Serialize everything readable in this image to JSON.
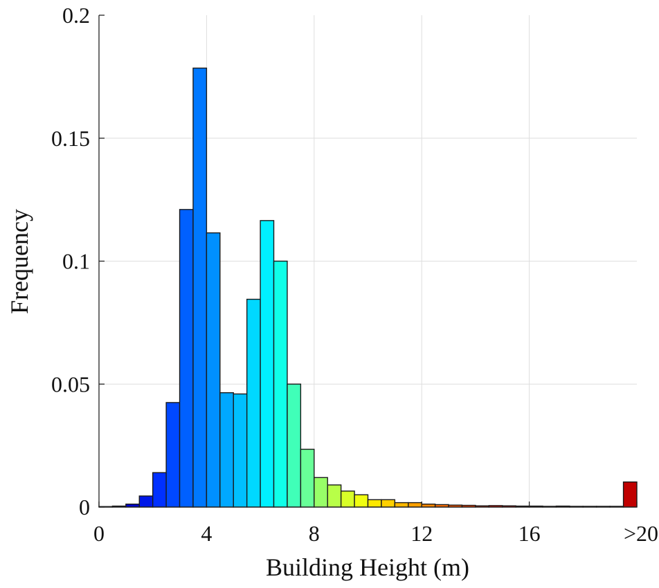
{
  "chart_data": {
    "type": "bar",
    "title": "",
    "xlabel": "Building Height (m)",
    "ylabel": "Frequency",
    "xlim": [
      0,
      20
    ],
    "ylim": [
      0,
      0.2
    ],
    "bin_width": 0.5,
    "grid": true,
    "x_tick_values": [
      0,
      4,
      8,
      12,
      16,
      20
    ],
    "x_tick_labels": [
      "0",
      "4",
      "8",
      "12",
      "16",
      ">20"
    ],
    "y_tick_values": [
      0,
      0.05,
      0.1,
      0.15,
      0.2
    ],
    "y_tick_labels": [
      "0",
      "0.05",
      "0.1",
      "0.15",
      "0.2"
    ],
    "bin_starts": [
      0,
      0.5,
      1,
      1.5,
      2,
      2.5,
      3,
      3.5,
      4,
      4.5,
      5,
      5.5,
      6,
      6.5,
      7,
      7.5,
      8,
      8.5,
      9,
      9.5,
      10,
      10.5,
      11,
      11.5,
      12,
      12.5,
      13,
      13.5,
      14,
      14.5,
      15,
      15.5,
      16,
      16.5,
      17,
      17.5,
      18,
      18.5,
      19,
      19.5
    ],
    "values": [
      0.0002,
      0.0004,
      0.0012,
      0.0045,
      0.014,
      0.0425,
      0.121,
      0.1785,
      0.1115,
      0.0465,
      0.046,
      0.0845,
      0.1165,
      0.1,
      0.05,
      0.0235,
      0.012,
      0.009,
      0.0065,
      0.005,
      0.003,
      0.003,
      0.0018,
      0.0018,
      0.0012,
      0.001,
      0.0008,
      0.0007,
      0.0005,
      0.0006,
      0.0005,
      0.0004,
      0.0004,
      0.0003,
      0.0004,
      0.0003,
      0.0003,
      0.0003,
      0.0003,
      0.0102
    ],
    "colors": [
      "#0000a0",
      "#0000b8",
      "#0004d0",
      "#0018e8",
      "#0030ff",
      "#0048ff",
      "#0060ff",
      "#0078ff",
      "#0090ff",
      "#00a8ff",
      "#00c0ff",
      "#00d8ff",
      "#00f0ff",
      "#10ffe8",
      "#40ffb8",
      "#68ff98",
      "#98ff68",
      "#b8ff48",
      "#d8ff28",
      "#f0ff10",
      "#ffe800",
      "#ffd000",
      "#ffb800",
      "#ffa000",
      "#ff8800",
      "#ff7000",
      "#ff5800",
      "#ff4000",
      "#ff2800",
      "#f01000",
      "#e00000",
      "#d00000",
      "#c80000",
      "#c00000",
      "#b80000",
      "#b00000",
      "#a80000",
      "#a00000",
      "#980000",
      "#c00000"
    ]
  }
}
